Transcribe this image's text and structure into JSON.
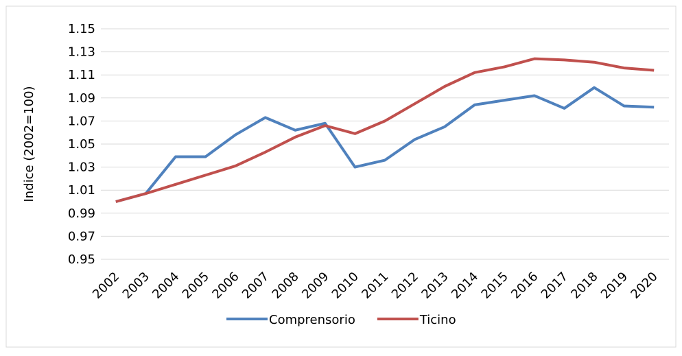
{
  "chart_data": {
    "type": "line",
    "y_label": "Indice (2002=100)",
    "categories": [
      "2002",
      "2003",
      "2004",
      "2005",
      "2006",
      "2007",
      "2008",
      "2009",
      "2010",
      "2011",
      "2012",
      "2013",
      "2014",
      "2015",
      "2016",
      "2017",
      "2018",
      "2019",
      "2020"
    ],
    "series": [
      {
        "name": "Comprensorio",
        "color": "#4f81bd",
        "values": [
          1.0,
          1.007,
          1.039,
          1.039,
          1.058,
          1.073,
          1.062,
          1.068,
          1.03,
          1.036,
          1.054,
          1.065,
          1.084,
          1.088,
          1.092,
          1.081,
          1.099,
          1.083,
          1.082
        ]
      },
      {
        "name": "Ticino",
        "color": "#c0504d",
        "values": [
          1.0,
          1.007,
          1.015,
          1.023,
          1.031,
          1.043,
          1.056,
          1.066,
          1.059,
          1.07,
          1.085,
          1.1,
          1.112,
          1.117,
          1.124,
          1.123,
          1.121,
          1.116,
          1.114
        ]
      }
    ],
    "ylim": [
      0.95,
      1.15
    ],
    "yticks": [
      0.95,
      0.97,
      0.99,
      1.01,
      1.03,
      1.05,
      1.07,
      1.09,
      1.11,
      1.13,
      1.15
    ],
    "grid": true,
    "legend": "bottom"
  }
}
